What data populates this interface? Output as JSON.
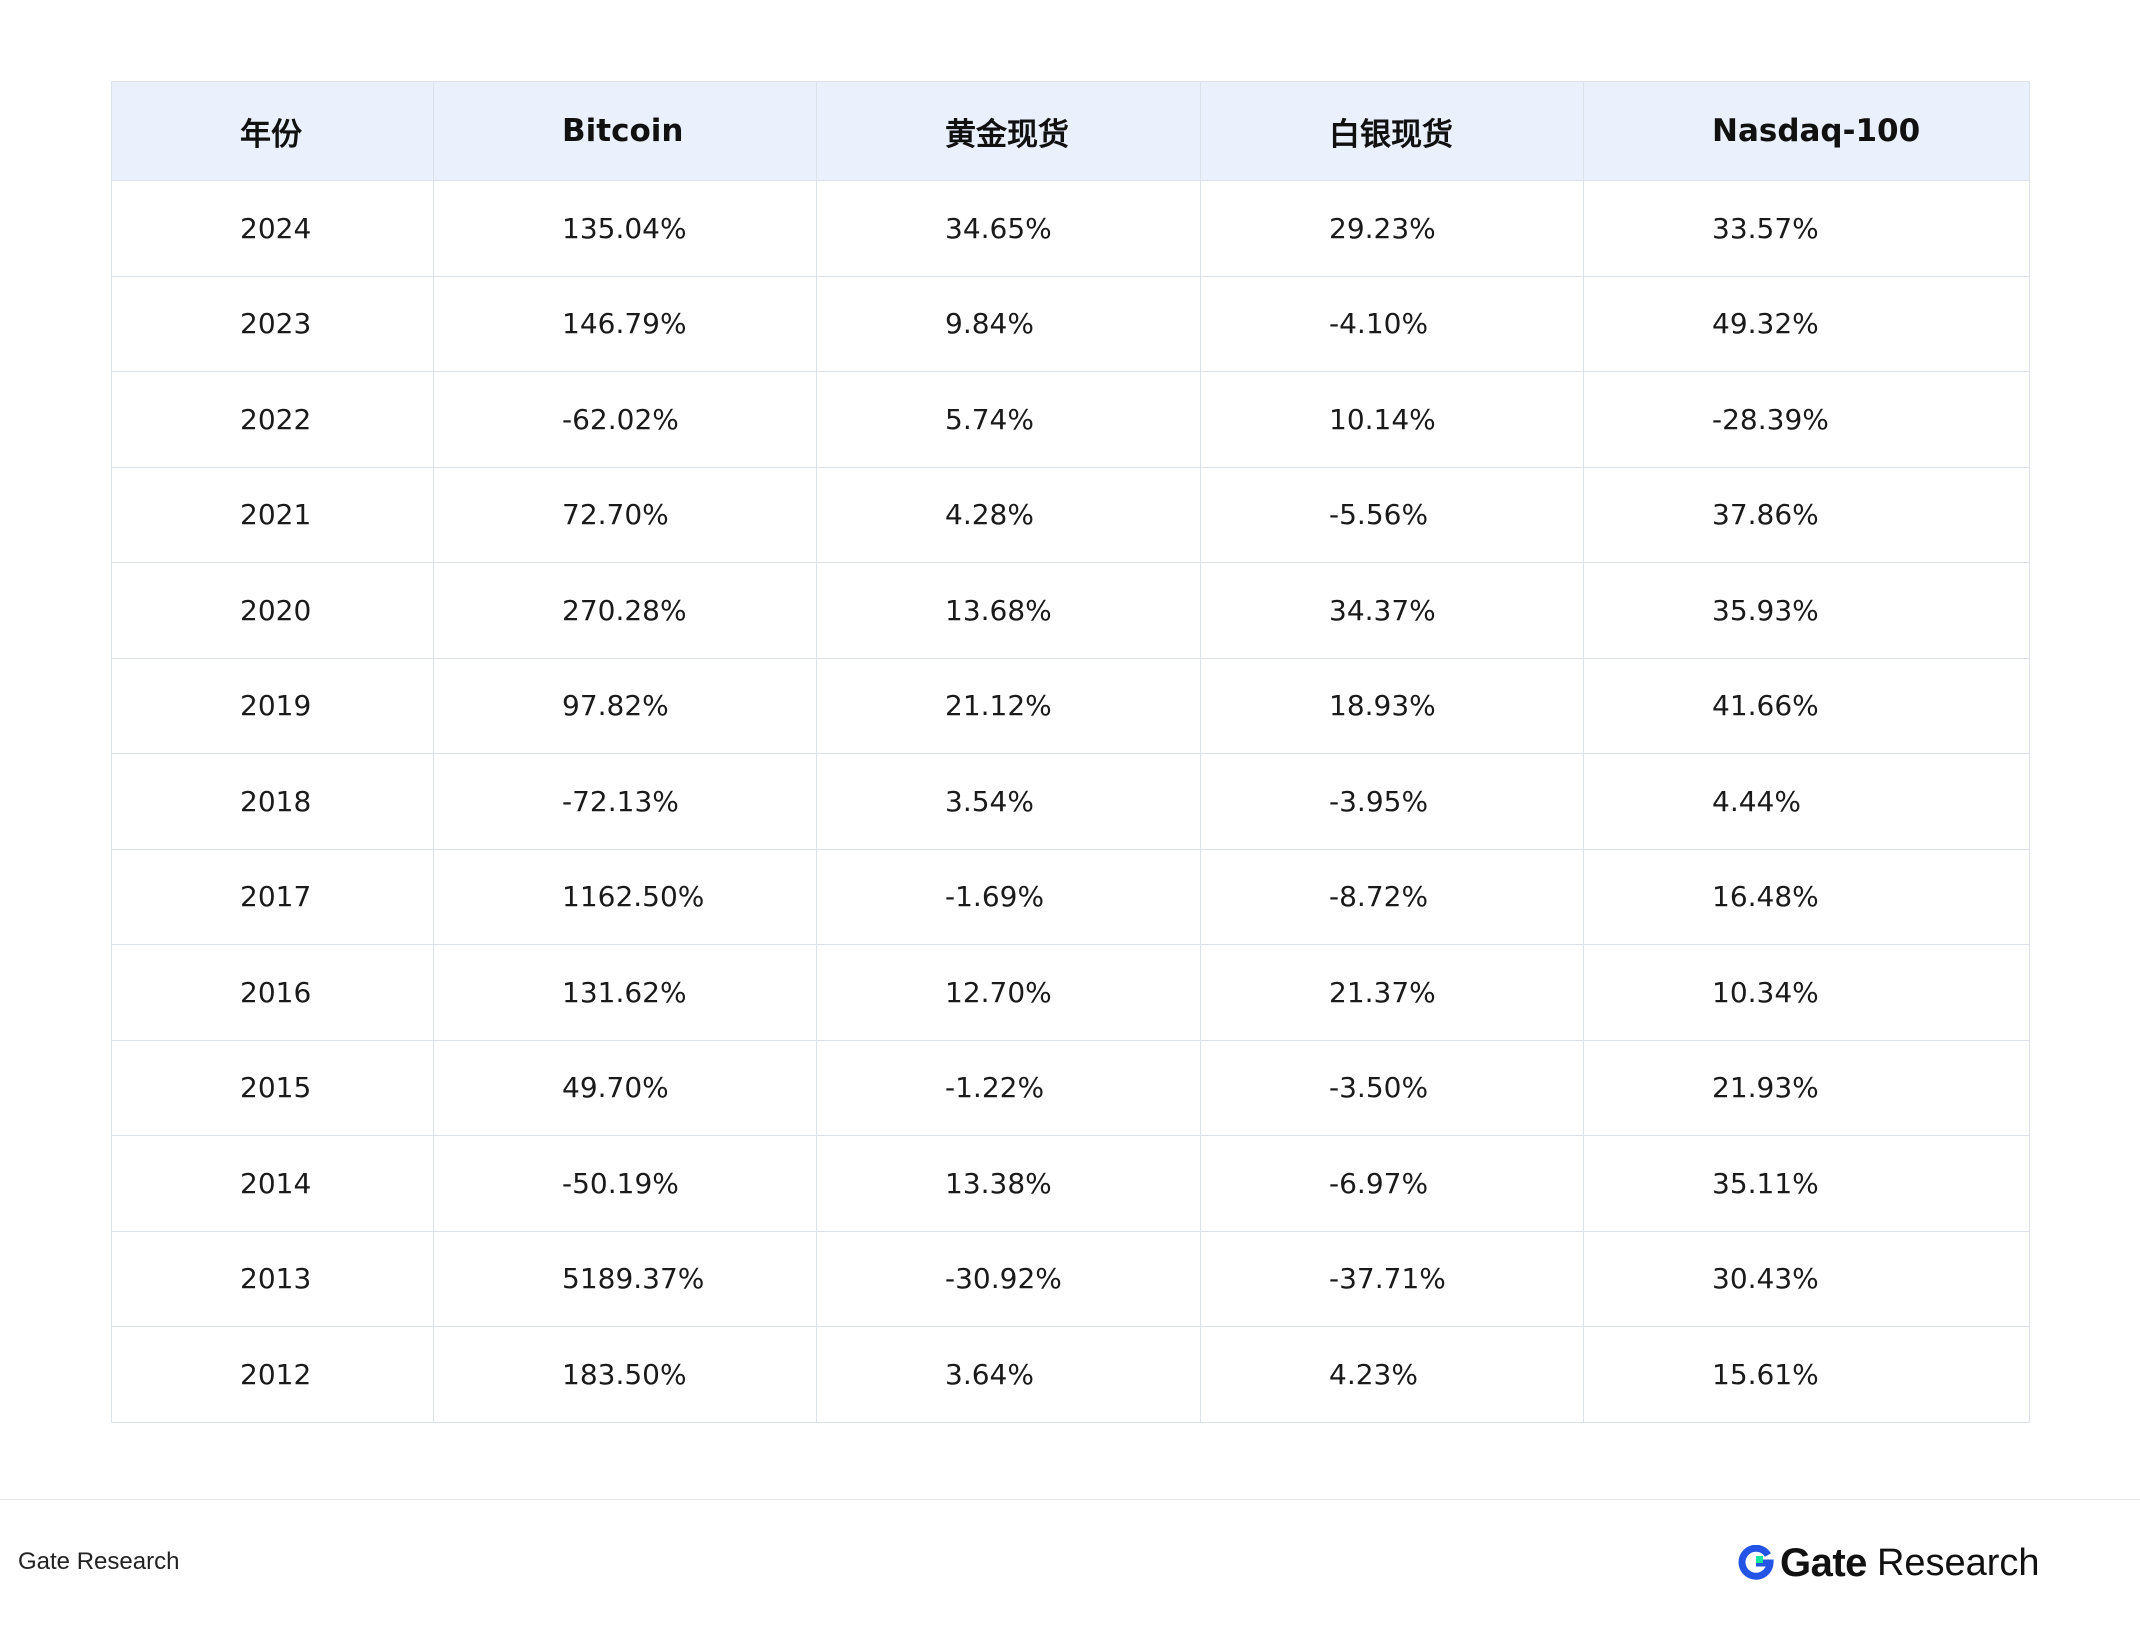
{
  "chart_data": {
    "type": "table",
    "columns": [
      "年份",
      "Bitcoin",
      "黄金现货",
      "白银现货",
      "Nasdaq-100"
    ],
    "rows": [
      [
        "2024",
        "135.04%",
        "34.65%",
        "29.23%",
        "33.57%"
      ],
      [
        "2023",
        "146.79%",
        "9.84%",
        "-4.10%",
        "49.32%"
      ],
      [
        "2022",
        "-62.02%",
        "5.74%",
        "10.14%",
        "-28.39%"
      ],
      [
        "2021",
        "72.70%",
        "4.28%",
        "-5.56%",
        "37.86%"
      ],
      [
        "2020",
        "270.28%",
        "13.68%",
        "34.37%",
        "35.93%"
      ],
      [
        "2019",
        "97.82%",
        "21.12%",
        "18.93%",
        "41.66%"
      ],
      [
        "2018",
        "-72.13%",
        "3.54%",
        "-3.95%",
        "4.44%"
      ],
      [
        "2017",
        "1162.50%",
        "-1.69%",
        "-8.72%",
        "16.48%"
      ],
      [
        "2016",
        "131.62%",
        "12.70%",
        "21.37%",
        "10.34%"
      ],
      [
        "2015",
        "49.70%",
        "-1.22%",
        "-3.50%",
        "21.93%"
      ],
      [
        "2014",
        "-50.19%",
        "13.38%",
        "-6.97%",
        "35.11%"
      ],
      [
        "2013",
        "5189.37%",
        "-30.92%",
        "-37.71%",
        "30.43%"
      ],
      [
        "2012",
        "183.50%",
        "3.64%",
        "4.23%",
        "15.61%"
      ]
    ],
    "header_background": "#eaf1fd",
    "border_color": "#dde2ea"
  },
  "footer": {
    "source": "Gate Research",
    "logo_word": "Gate",
    "logo_sub": "Research",
    "logo_colors": {
      "blue": "#2354e6",
      "green": "#17e6a1"
    }
  }
}
